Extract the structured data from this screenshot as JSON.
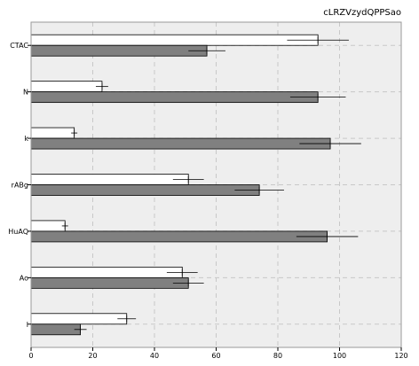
{
  "chart_data": {
    "type": "bar",
    "orientation": "horizontal",
    "title": "cLRZVzydQPPSao",
    "xlabel": "",
    "ylabel": "",
    "xlim": [
      0,
      120
    ],
    "x_ticks": [
      0,
      20,
      40,
      60,
      80,
      100,
      120
    ],
    "grid": true,
    "categories": [
      "CTAC",
      "N",
      "k",
      "rABg",
      "HuAQ",
      "Ao",
      "l"
    ],
    "series": [
      {
        "color": "#ffffff",
        "values": [
          93,
          23,
          14,
          51,
          11,
          49,
          31
        ],
        "errors": [
          10,
          2,
          1,
          5,
          1,
          5,
          3
        ]
      },
      {
        "color": "#808080",
        "values": [
          57,
          93,
          97,
          74,
          96,
          51,
          16
        ],
        "errors": [
          6,
          9,
          10,
          8,
          10,
          5,
          2
        ]
      }
    ],
    "colors": {
      "background": "#eeeeee",
      "grid": "#c8c8c8",
      "frame": "#9a9a9a"
    }
  }
}
